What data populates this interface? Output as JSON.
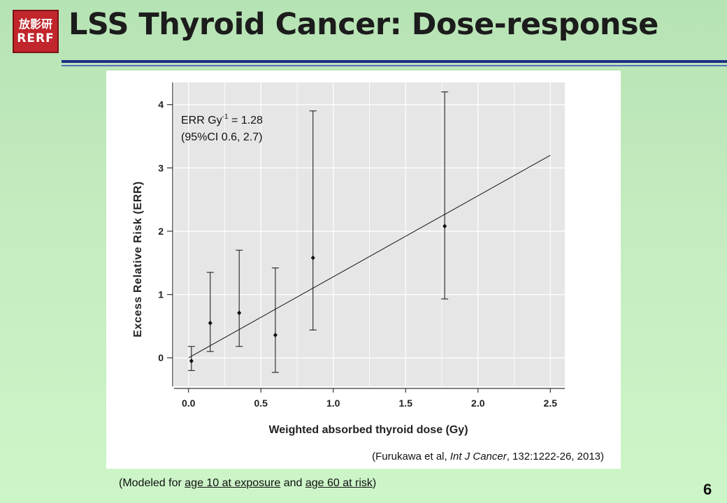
{
  "header": {
    "title": "LSS Thyroid Cancer: Dose-response",
    "logo": {
      "top_text": "放影研",
      "bottom_text": "RERF",
      "bg_color": "#c0262c"
    },
    "rule_color": "#1f2d86"
  },
  "chart_data": {
    "type": "scatter",
    "xlabel": "Weighted absorbed thyroid dose (Gy)",
    "ylabel": "Excess Relative Risk (ERR)",
    "xlim": [
      -0.1,
      2.6
    ],
    "ylim": [
      -0.45,
      4.35
    ],
    "xticks": [
      "0.0",
      "0.5",
      "1.0",
      "1.5",
      "2.0",
      "2.5"
    ],
    "yticks": [
      "0",
      "1",
      "2",
      "3",
      "4"
    ],
    "grid": true,
    "points": [
      {
        "x": 0.02,
        "y": -0.05,
        "lo": -0.2,
        "hi": 0.18
      },
      {
        "x": 0.15,
        "y": 0.55,
        "lo": 0.1,
        "hi": 1.35
      },
      {
        "x": 0.35,
        "y": 0.71,
        "lo": 0.18,
        "hi": 1.7
      },
      {
        "x": 0.6,
        "y": 0.36,
        "lo": -0.23,
        "hi": 1.42
      },
      {
        "x": 0.86,
        "y": 1.58,
        "lo": 0.44,
        "hi": 3.9
      },
      {
        "x": 1.77,
        "y": 2.08,
        "lo": 0.93,
        "hi": 4.2
      }
    ],
    "fit_line": {
      "x": [
        0.0,
        2.5
      ],
      "y": [
        0.0,
        3.2
      ]
    },
    "annotation": {
      "line1_prefix": "ERR Gy",
      "line1_sup": "-1",
      "line1_suffix": " = 1.28",
      "line2": "(95%CI 0.6, 2.7)"
    },
    "colors": {
      "plot_bg": "#e6e6e6",
      "grid": "#ffffff",
      "ink": "#111111"
    }
  },
  "citation": {
    "prefix": "(Furukawa et al, ",
    "journal": "Int J Cancer",
    "suffix": ", 132:1222-26, 2013)"
  },
  "footnote": {
    "prefix": "(Modeled for ",
    "u1": "age 10 at exposure",
    "mid": " and ",
    "u2": "age 60 at risk",
    "suffix": ")"
  },
  "page_number": "6"
}
